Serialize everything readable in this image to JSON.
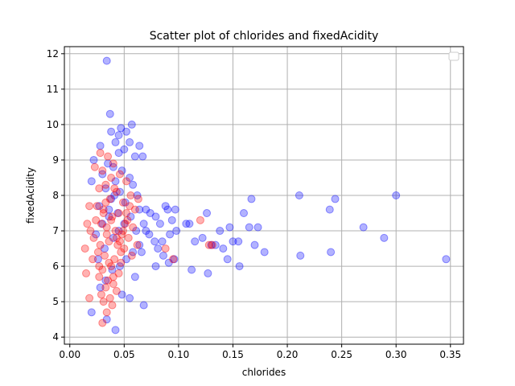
{
  "chart_data": {
    "type": "scatter",
    "title": "Scatter plot of chlorides and fixedAcidity",
    "xlabel": "chlorides",
    "ylabel": "fixedAcidity",
    "xlim": [
      -0.005,
      0.362
    ],
    "ylim": [
      3.8,
      12.2
    ],
    "xticks": [
      0.0,
      0.05,
      0.1,
      0.15,
      0.2,
      0.25,
      0.3,
      0.35
    ],
    "xtick_labels": [
      "0.00",
      "0.05",
      "0.10",
      "0.15",
      "0.20",
      "0.25",
      "0.30",
      "0.35"
    ],
    "yticks": [
      4,
      5,
      6,
      7,
      8,
      9,
      10,
      11,
      12
    ],
    "ytick_labels": [
      "4",
      "5",
      "6",
      "7",
      "8",
      "9",
      "10",
      "11",
      "12"
    ],
    "grid": true,
    "legend": {
      "placement": "top-right",
      "entries": []
    },
    "series": [
      {
        "color": "#0000ff",
        "opacity": 0.3,
        "points": [
          [
            0.034,
            11.8
          ],
          [
            0.037,
            10.3
          ],
          [
            0.057,
            10.0
          ],
          [
            0.047,
            9.9
          ],
          [
            0.052,
            9.8
          ],
          [
            0.038,
            9.8
          ],
          [
            0.045,
            9.7
          ],
          [
            0.042,
            9.5
          ],
          [
            0.055,
            9.5
          ],
          [
            0.064,
            9.4
          ],
          [
            0.028,
            9.4
          ],
          [
            0.05,
            9.3
          ],
          [
            0.045,
            9.2
          ],
          [
            0.067,
            9.1
          ],
          [
            0.06,
            9.1
          ],
          [
            0.022,
            9.0
          ],
          [
            0.035,
            8.9
          ],
          [
            0.04,
            8.8
          ],
          [
            0.048,
            8.7
          ],
          [
            0.03,
            8.6
          ],
          [
            0.055,
            8.5
          ],
          [
            0.042,
            8.4
          ],
          [
            0.02,
            8.4
          ],
          [
            0.058,
            8.3
          ],
          [
            0.033,
            8.2
          ],
          [
            0.046,
            8.1
          ],
          [
            0.062,
            8.0
          ],
          [
            0.038,
            7.9
          ],
          [
            0.051,
            7.8
          ],
          [
            0.027,
            7.7
          ],
          [
            0.064,
            7.6
          ],
          [
            0.044,
            7.5
          ],
          [
            0.036,
            7.4
          ],
          [
            0.07,
            7.6
          ],
          [
            0.074,
            7.5
          ],
          [
            0.079,
            7.4
          ],
          [
            0.083,
            7.2
          ],
          [
            0.088,
            7.7
          ],
          [
            0.09,
            7.6
          ],
          [
            0.097,
            7.6
          ],
          [
            0.094,
            7.3
          ],
          [
            0.098,
            7.0
          ],
          [
            0.092,
            6.9
          ],
          [
            0.085,
            6.7
          ],
          [
            0.081,
            6.5
          ],
          [
            0.086,
            6.3
          ],
          [
            0.091,
            6.1
          ],
          [
            0.096,
            6.2
          ],
          [
            0.079,
            6.0
          ],
          [
            0.078,
            6.7
          ],
          [
            0.073,
            6.9
          ],
          [
            0.07,
            7.0
          ],
          [
            0.068,
            7.2
          ],
          [
            0.066,
            6.4
          ],
          [
            0.068,
            4.9
          ],
          [
            0.107,
            7.2
          ],
          [
            0.11,
            7.2
          ],
          [
            0.115,
            6.7
          ],
          [
            0.112,
            5.9
          ],
          [
            0.122,
            6.8
          ],
          [
            0.126,
            7.5
          ],
          [
            0.127,
            5.8
          ],
          [
            0.13,
            6.6
          ],
          [
            0.134,
            6.6
          ],
          [
            0.138,
            7.0
          ],
          [
            0.141,
            6.5
          ],
          [
            0.145,
            6.2
          ],
          [
            0.147,
            7.1
          ],
          [
            0.15,
            6.7
          ],
          [
            0.155,
            6.7
          ],
          [
            0.156,
            6.0
          ],
          [
            0.16,
            7.5
          ],
          [
            0.165,
            7.1
          ],
          [
            0.167,
            7.9
          ],
          [
            0.17,
            6.6
          ],
          [
            0.173,
            7.1
          ],
          [
            0.179,
            6.4
          ],
          [
            0.211,
            8.0
          ],
          [
            0.212,
            6.3
          ],
          [
            0.239,
            7.6
          ],
          [
            0.244,
            7.9
          ],
          [
            0.24,
            6.4
          ],
          [
            0.27,
            7.1
          ],
          [
            0.289,
            6.8
          ],
          [
            0.3,
            8.0
          ],
          [
            0.346,
            6.2
          ],
          [
            0.02,
            4.7
          ],
          [
            0.034,
            4.5
          ],
          [
            0.042,
            4.2
          ],
          [
            0.028,
            5.4
          ],
          [
            0.033,
            5.6
          ],
          [
            0.048,
            5.2
          ],
          [
            0.055,
            5.1
          ],
          [
            0.06,
            5.7
          ],
          [
            0.039,
            5.9
          ],
          [
            0.046,
            6.0
          ],
          [
            0.052,
            6.2
          ],
          [
            0.058,
            6.4
          ],
          [
            0.064,
            6.6
          ],
          [
            0.04,
            6.8
          ],
          [
            0.045,
            7.0
          ],
          [
            0.05,
            7.2
          ],
          [
            0.056,
            7.4
          ],
          [
            0.061,
            7.0
          ],
          [
            0.032,
            6.5
          ],
          [
            0.026,
            6.2
          ],
          [
            0.024,
            6.9
          ],
          [
            0.03,
            7.2
          ],
          [
            0.036,
            7.6
          ],
          [
            0.041,
            8.0
          ]
        ]
      },
      {
        "color": "#ff0000",
        "opacity": 0.3,
        "points": [
          [
            0.028,
            9.2
          ],
          [
            0.035,
            9.1
          ],
          [
            0.04,
            8.9
          ],
          [
            0.023,
            8.8
          ],
          [
            0.03,
            8.7
          ],
          [
            0.046,
            8.6
          ],
          [
            0.038,
            8.5
          ],
          [
            0.052,
            8.4
          ],
          [
            0.033,
            8.3
          ],
          [
            0.027,
            8.2
          ],
          [
            0.043,
            8.1
          ],
          [
            0.056,
            8.0
          ],
          [
            0.037,
            7.9
          ],
          [
            0.049,
            7.8
          ],
          [
            0.025,
            7.7
          ],
          [
            0.031,
            7.6
          ],
          [
            0.045,
            7.5
          ],
          [
            0.039,
            7.4
          ],
          [
            0.053,
            7.3
          ],
          [
            0.029,
            7.2
          ],
          [
            0.034,
            7.1
          ],
          [
            0.042,
            7.0
          ],
          [
            0.048,
            6.9
          ],
          [
            0.022,
            6.8
          ],
          [
            0.036,
            6.7
          ],
          [
            0.044,
            6.6
          ],
          [
            0.05,
            6.5
          ],
          [
            0.026,
            6.4
          ],
          [
            0.032,
            6.3
          ],
          [
            0.041,
            6.2
          ],
          [
            0.047,
            6.1
          ],
          [
            0.038,
            6.0
          ],
          [
            0.03,
            5.9
          ],
          [
            0.045,
            5.8
          ],
          [
            0.027,
            5.7
          ],
          [
            0.035,
            5.6
          ],
          [
            0.04,
            5.5
          ],
          [
            0.033,
            5.4
          ],
          [
            0.043,
            5.3
          ],
          [
            0.029,
            5.2
          ],
          [
            0.037,
            5.1
          ],
          [
            0.031,
            5.0
          ],
          [
            0.039,
            4.9
          ],
          [
            0.034,
            4.7
          ],
          [
            0.03,
            4.4
          ],
          [
            0.018,
            5.1
          ],
          [
            0.015,
            5.8
          ],
          [
            0.014,
            6.5
          ],
          [
            0.016,
            7.2
          ],
          [
            0.018,
            7.7
          ],
          [
            0.019,
            7.0
          ],
          [
            0.021,
            6.2
          ],
          [
            0.06,
            7.6
          ],
          [
            0.058,
            7.1
          ],
          [
            0.062,
            6.6
          ],
          [
            0.057,
            6.3
          ],
          [
            0.063,
            7.9
          ],
          [
            0.088,
            6.5
          ],
          [
            0.095,
            6.2
          ],
          [
            0.12,
            7.3
          ],
          [
            0.128,
            6.6
          ],
          [
            0.131,
            6.6
          ],
          [
            0.055,
            7.7
          ],
          [
            0.051,
            7.2
          ],
          [
            0.047,
            6.4
          ],
          [
            0.043,
            6.8
          ],
          [
            0.038,
            7.3
          ],
          [
            0.034,
            6.9
          ],
          [
            0.028,
            6.6
          ],
          [
            0.024,
            7.3
          ],
          [
            0.033,
            7.8
          ],
          [
            0.041,
            8.2
          ],
          [
            0.049,
            7.0
          ],
          [
            0.054,
            6.8
          ],
          [
            0.036,
            6.1
          ],
          [
            0.04,
            5.7
          ],
          [
            0.046,
            6.7
          ],
          [
            0.031,
            7.5
          ],
          [
            0.027,
            6.0
          ],
          [
            0.052,
            7.5
          ]
        ]
      }
    ]
  }
}
